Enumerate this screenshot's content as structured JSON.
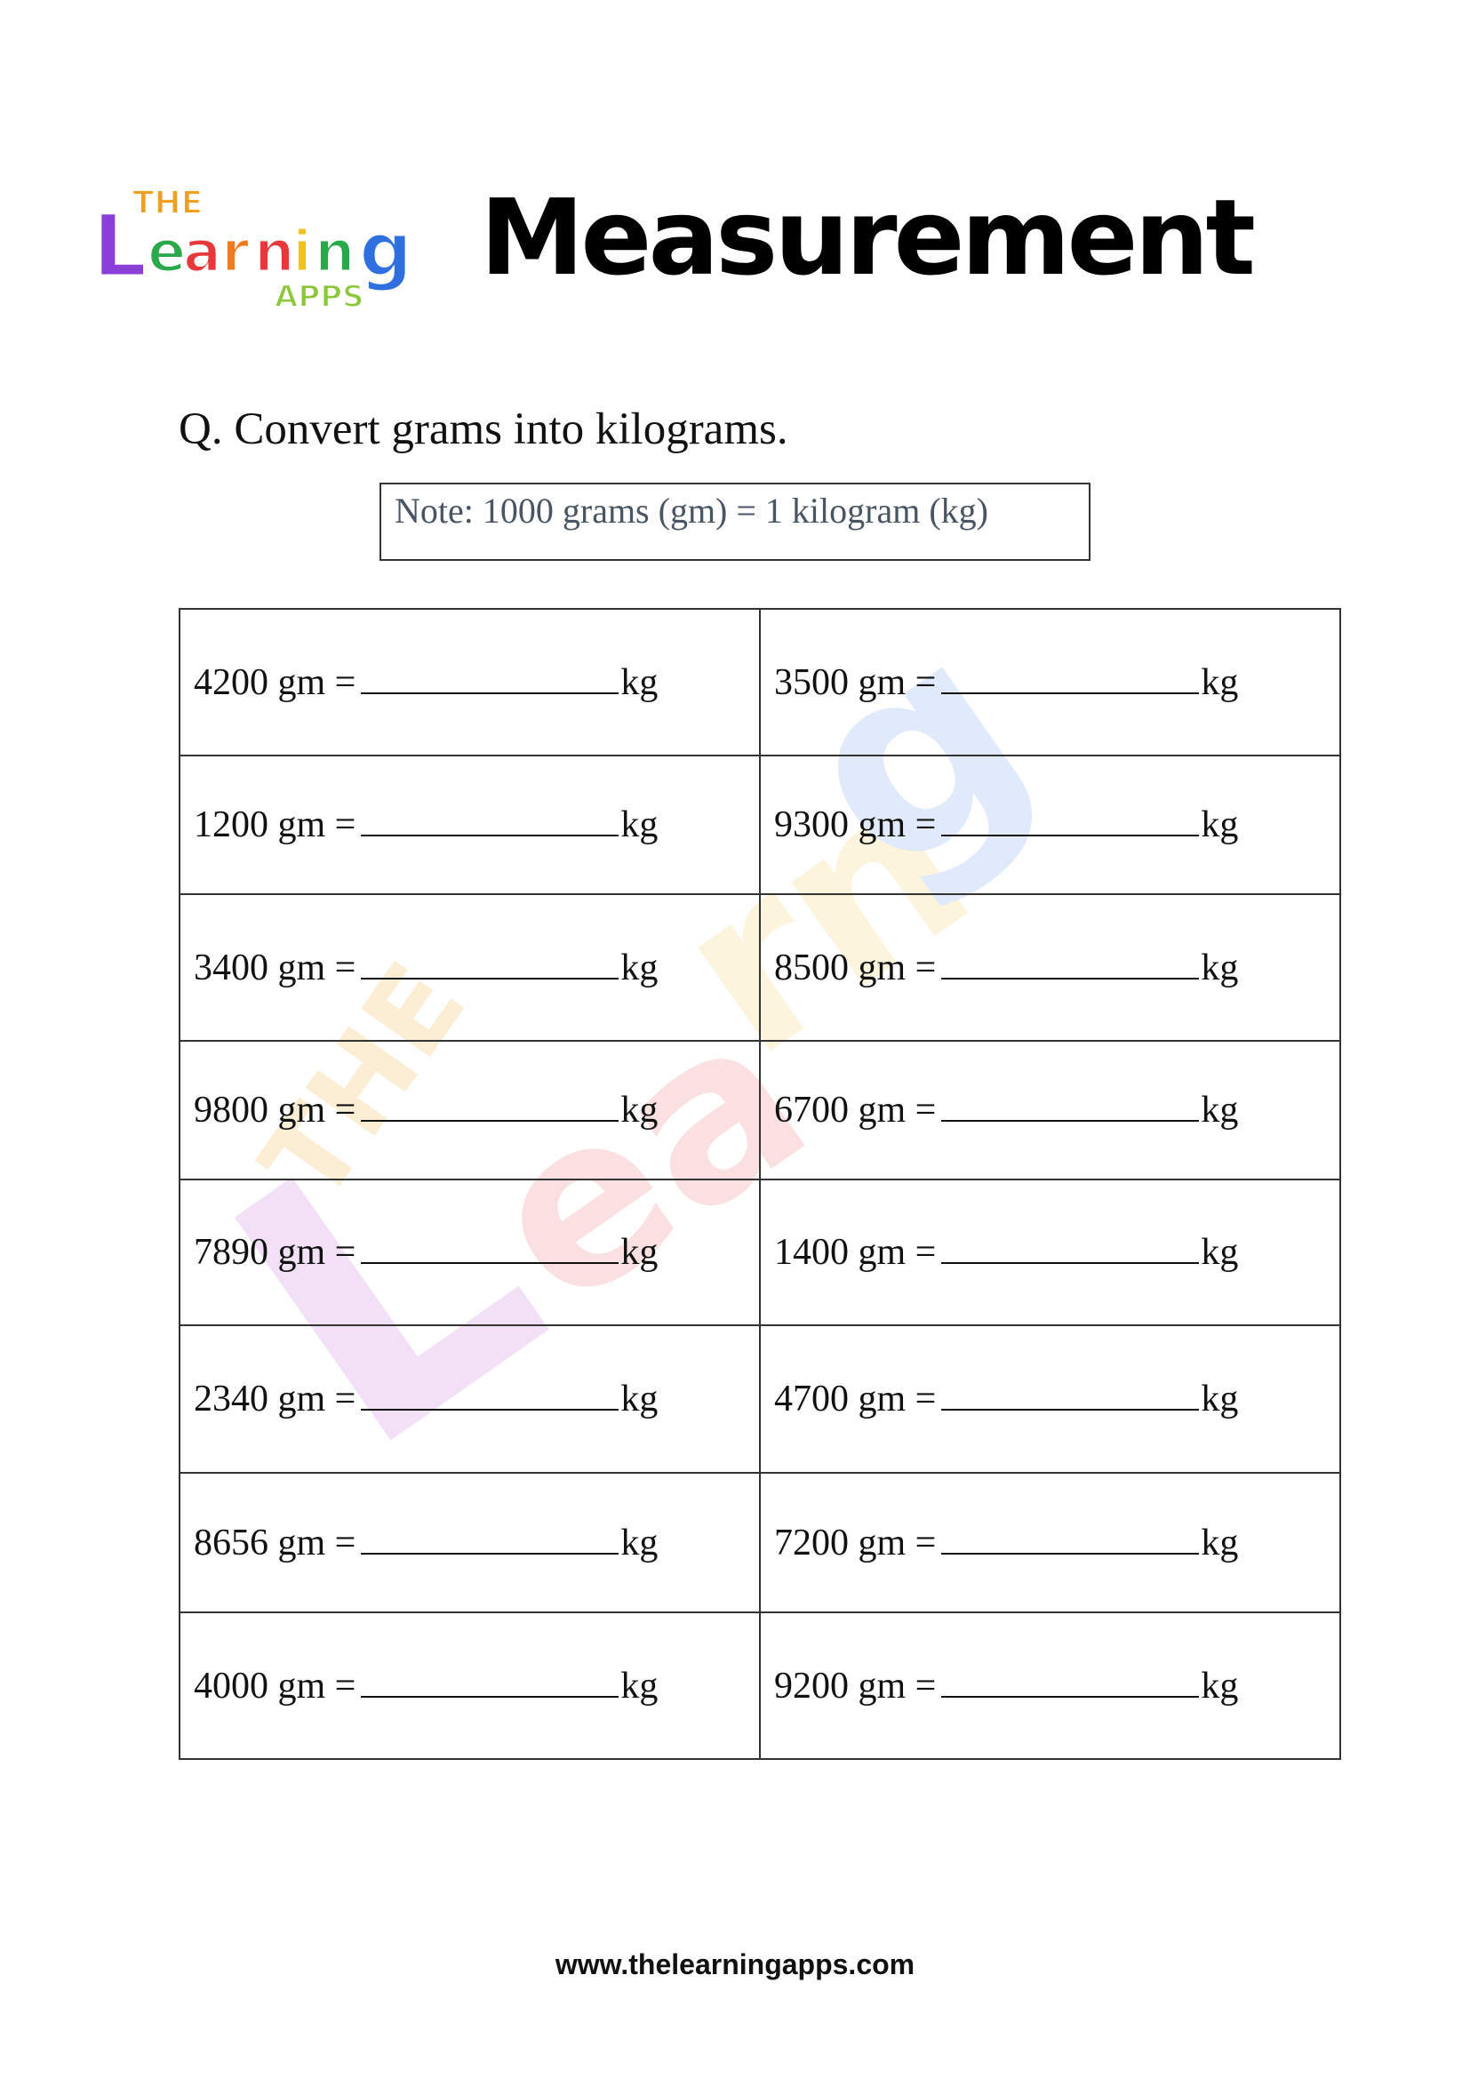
{
  "header": {
    "logo_text": "The Learning Apps",
    "title": "Measurement"
  },
  "question": "Q. Convert grams into kilograms.",
  "note": "Note: 1000 grams (gm) = 1 kilogram (kg)",
  "unit_from": "gm =",
  "unit_to": "kg",
  "rows": [
    [
      "4200",
      "3500"
    ],
    [
      "1200",
      "9300"
    ],
    [
      "3400",
      "8500"
    ],
    [
      "9800",
      "6700"
    ],
    [
      "7890",
      "1400"
    ],
    [
      "2340",
      "4700"
    ],
    [
      "8656",
      "7200"
    ],
    [
      "4000",
      "9200"
    ]
  ],
  "footer": "www.thelearningapps.com"
}
